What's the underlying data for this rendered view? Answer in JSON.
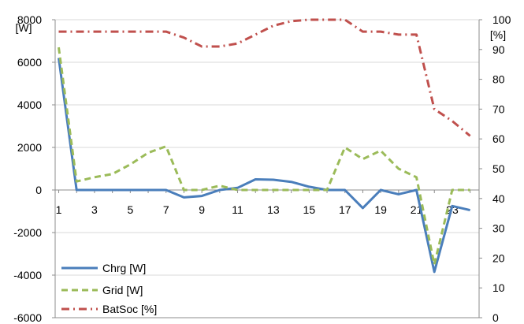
{
  "chart_data": {
    "type": "line",
    "x": [
      1,
      2,
      3,
      4,
      5,
      6,
      7,
      8,
      9,
      10,
      11,
      12,
      13,
      14,
      15,
      16,
      17,
      18,
      19,
      20,
      21,
      22,
      23,
      24
    ],
    "x_tick_labels": [
      "1",
      "3",
      "5",
      "7",
      "9",
      "11",
      "13",
      "15",
      "17",
      "19",
      "21",
      "23"
    ],
    "left_axis": {
      "unit_label": "[W]",
      "ylim": [
        -6000,
        8000
      ],
      "ticks": [
        8000,
        6000,
        4000,
        2000,
        0,
        -2000,
        -4000,
        -6000
      ],
      "tick_labels": [
        "8000",
        "6000",
        "4000",
        "2000",
        "0",
        "-2000",
        "-4000",
        "-6000"
      ]
    },
    "right_axis": {
      "unit_label": "[%]",
      "ylim": [
        0,
        100
      ],
      "ticks": [
        100,
        90,
        80,
        70,
        60,
        50,
        40,
        30,
        20,
        10,
        0
      ],
      "tick_labels": [
        "100",
        "90",
        "80",
        "70",
        "60",
        "50",
        "40",
        "30",
        "20",
        "10",
        "0"
      ]
    },
    "series": [
      {
        "name": "Chrg [W]",
        "axis": "left",
        "color": "#4a7ebb",
        "dash": "solid",
        "values": [
          6200,
          0,
          0,
          0,
          0,
          0,
          0,
          -350,
          -280,
          0,
          100,
          500,
          480,
          380,
          150,
          0,
          0,
          -850,
          0,
          -200,
          0,
          -3850,
          -750,
          -950
        ]
      },
      {
        "name": "Grid [W]",
        "axis": "left",
        "color": "#9bbb59",
        "dash": "dashed",
        "values": [
          6700,
          400,
          600,
          750,
          1200,
          1750,
          2050,
          0,
          0,
          200,
          0,
          0,
          0,
          0,
          0,
          0,
          2000,
          1450,
          1850,
          1000,
          600,
          -3500,
          0,
          0
        ]
      },
      {
        "name": "BatSoc [%]",
        "axis": "right",
        "color": "#c0504d",
        "dash": "dashdot",
        "values": [
          96,
          96,
          96,
          96,
          96,
          96,
          96,
          94,
          91,
          91,
          92,
          95,
          98,
          99.5,
          100,
          100,
          100,
          96,
          96,
          95,
          95,
          70,
          66,
          61
        ]
      }
    ],
    "grid": true,
    "legend": "bottom-left"
  }
}
